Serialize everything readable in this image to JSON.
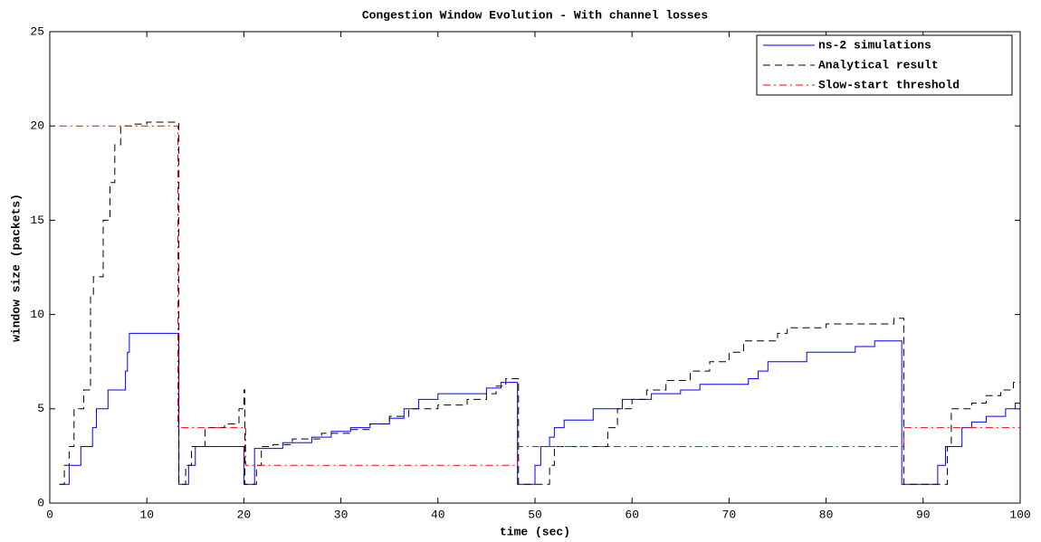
{
  "chart_data": {
    "type": "line",
    "title": "Congestion Window Evolution - With channel losses",
    "xlabel": "time (sec)",
    "ylabel": "window size (packets)",
    "xlim": [
      0,
      100
    ],
    "ylim": [
      0,
      25
    ],
    "xticks": [
      0,
      10,
      20,
      30,
      40,
      50,
      60,
      70,
      80,
      90,
      100
    ],
    "yticks": [
      0,
      5,
      10,
      15,
      20,
      25
    ],
    "grid": false,
    "legend": "upper right",
    "series": [
      {
        "name": "ns-2 simulations",
        "color": "#0000ff",
        "linestyle": "solid",
        "x": [
          1,
          2,
          2,
          3.2,
          3.2,
          4.4,
          4.4,
          4.8,
          4.8,
          6,
          6,
          7.8,
          7.8,
          8,
          8,
          8.2,
          8.2,
          13.3,
          13.3,
          14.3,
          14.3,
          15,
          15,
          20,
          20,
          21.1,
          21.1,
          24,
          24,
          27,
          27,
          29,
          29,
          31,
          31,
          33,
          33,
          35,
          35,
          36.5,
          36.5,
          38,
          38,
          40,
          40,
          45,
          45,
          46.5,
          46.5,
          48.2,
          48.2,
          50,
          50,
          50.6,
          50.6,
          51.5,
          51.5,
          52,
          52,
          53,
          53,
          56,
          56,
          59,
          59,
          62,
          62,
          65,
          65,
          67,
          67,
          72,
          72,
          73,
          73,
          74,
          74,
          78,
          78,
          83,
          83,
          85,
          85,
          87.8,
          87.8,
          91.5,
          91.5,
          92.3,
          92.3,
          94,
          94,
          95,
          95,
          96.5,
          96.5,
          98.5,
          98.5,
          99.5,
          99.5,
          100
        ],
        "values": [
          1,
          1,
          2,
          2,
          3,
          3,
          4,
          4,
          5,
          5,
          6,
          6,
          7,
          7,
          8,
          8,
          9,
          9,
          1,
          1,
          2,
          2,
          3,
          3,
          1,
          1,
          2.9,
          2.9,
          3.2,
          3.2,
          3.5,
          3.5,
          3.8,
          3.8,
          4,
          4,
          4.2,
          4.2,
          4.5,
          4.5,
          5,
          5,
          5.5,
          5.5,
          5.8,
          5.8,
          6.1,
          6.1,
          6.4,
          6.4,
          1,
          1,
          2,
          2,
          3,
          3,
          3.5,
          3.5,
          4,
          4,
          4.4,
          4.4,
          5,
          5,
          5.5,
          5.5,
          5.8,
          5.8,
          6,
          6,
          6.3,
          6.3,
          6.6,
          6.6,
          7,
          7,
          7.5,
          7.5,
          8,
          8,
          8.3,
          8.3,
          8.6,
          8.6,
          1,
          1,
          2,
          2,
          3,
          3,
          4,
          4,
          4.3,
          4.3,
          4.6,
          4.6,
          5,
          5,
          5.3,
          5.3
        ]
      },
      {
        "name": "Analytical result",
        "color": "#000000",
        "linestyle": "dashed",
        "x": [
          1,
          1.5,
          1.5,
          2,
          2,
          2.5,
          2.5,
          3.5,
          3.5,
          4.2,
          4.2,
          4.5,
          4.5,
          5.5,
          5.5,
          6.2,
          6.2,
          6.7,
          6.7,
          7.3,
          7.3,
          8.5,
          8.5,
          10,
          10,
          13.3,
          13.3,
          14,
          14,
          14.6,
          14.6,
          16,
          16,
          18,
          18,
          19.5,
          19.5,
          20,
          20,
          20.1,
          20.1,
          21.3,
          21.3,
          21.8,
          21.8,
          23,
          23,
          25,
          25,
          28,
          28,
          31,
          31,
          33,
          33,
          35,
          35,
          37,
          37,
          40,
          40,
          43,
          43,
          45,
          45,
          46,
          46,
          47,
          47,
          48.3,
          48.3,
          51.5,
          51.5,
          52,
          52,
          57.5,
          57.5,
          58.5,
          58.5,
          60,
          60,
          61.5,
          61.5,
          63.5,
          63.5,
          66,
          66,
          68,
          68,
          70,
          70,
          71.5,
          71.5,
          75,
          75,
          76,
          76,
          80,
          80,
          87,
          87,
          88,
          88,
          92.5,
          92.5,
          92.9,
          92.9,
          95,
          95,
          96.5,
          96.5,
          98,
          98,
          99.3,
          99.3,
          100
        ],
        "values": [
          1,
          1,
          2,
          2,
          3,
          3,
          5,
          5,
          6,
          6,
          11,
          11,
          12,
          12,
          15,
          15,
          17,
          17,
          19,
          19,
          20,
          20,
          20.1,
          20.1,
          20.2,
          20.2,
          1,
          1,
          2,
          2,
          3,
          3,
          4,
          4,
          4.2,
          4.2,
          5,
          5,
          6,
          6,
          1,
          1,
          2,
          2,
          3,
          3,
          3.1,
          3.1,
          3.4,
          3.4,
          3.7,
          3.7,
          3.9,
          3.9,
          4.2,
          4.2,
          4.6,
          4.6,
          5,
          5,
          5.2,
          5.2,
          5.5,
          5.5,
          5.8,
          5.8,
          6.2,
          6.2,
          6.6,
          6.6,
          1,
          1,
          2,
          2,
          3,
          3,
          4,
          4,
          5,
          5,
          5.5,
          5.5,
          6,
          6,
          6.5,
          6.5,
          7,
          7,
          7.5,
          7.5,
          8,
          8,
          8.6,
          8.6,
          9,
          9,
          9.3,
          9.3,
          9.5,
          9.5,
          9.8,
          9.8,
          1,
          1,
          3,
          3,
          5,
          5,
          5.3,
          5.3,
          5.7,
          5.7,
          6,
          6,
          6.4,
          6.4
        ]
      },
      {
        "name": "Slow-start threshold",
        "color": "#ff0000",
        "linestyle": "dashdot",
        "x": [
          1,
          13.2,
          13.2,
          20.2,
          20.2,
          48.2,
          48.2,
          88,
          88,
          100
        ],
        "values": [
          20,
          20,
          4,
          4,
          2,
          2,
          3,
          3,
          4,
          4
        ]
      }
    ]
  }
}
